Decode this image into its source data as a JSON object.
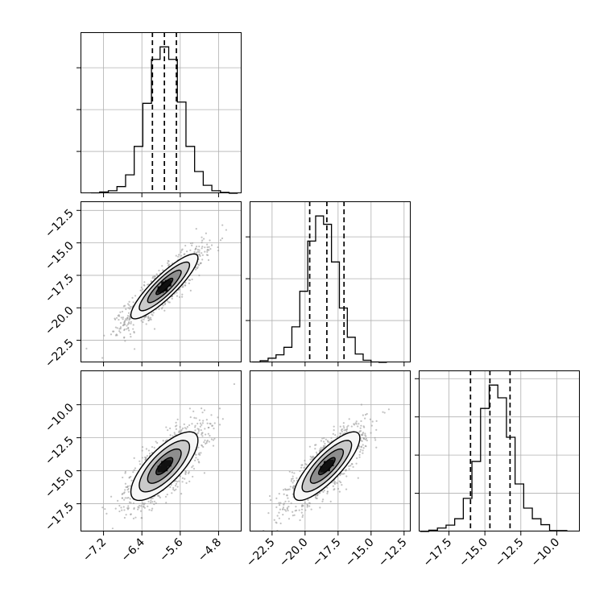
{
  "chart_data": {
    "type": "corner",
    "parameters": [
      {
        "id": "p1",
        "hist": {
          "edges": [
            -7.46,
            -7.28,
            -7.1,
            -6.92,
            -6.74,
            -6.56,
            -6.38,
            -6.2,
            -6.02,
            -5.84,
            -5.66,
            -5.48,
            -5.3,
            -5.12,
            -4.94,
            -4.76,
            -4.58,
            -4.4
          ],
          "counts": [
            1,
            3,
            6,
            16,
            44,
            112,
            215,
            320,
            350,
            320,
            218,
            112,
            52,
            19,
            6,
            2,
            0
          ]
        },
        "quantiles": [
          -6.18,
          -5.93,
          -5.68
        ],
        "ticks": [
          -7.2,
          -6.4,
          -5.6,
          -4.8
        ],
        "tick_labels": [
          "−7.2",
          "−6.4",
          "−5.6",
          "−4.8"
        ],
        "range": [
          -7.68,
          -4.32
        ]
      },
      {
        "id": "p2",
        "hist": {
          "edges": [
            -24.0,
            -23.4,
            -22.8,
            -22.2,
            -21.6,
            -21.0,
            -20.4,
            -19.8,
            -19.2,
            -18.6,
            -18.0,
            -17.4,
            -16.8,
            -16.2,
            -15.6,
            -15.0,
            -14.4,
            -13.8
          ],
          "counts": [
            1,
            4,
            10,
            18,
            36,
            85,
            170,
            290,
            350,
            330,
            240,
            130,
            60,
            20,
            5,
            1,
            0
          ]
        },
        "quantiles": [
          -19.65,
          -18.35,
          -17.05
        ],
        "ticks": [
          -22.5,
          -20.0,
          -17.5,
          -15.0,
          -12.5
        ],
        "tick_labels": [
          "−22.5",
          "−20.0",
          "−17.5",
          "−15.0",
          "−12.5"
        ],
        "range": [
          -24.2,
          -12.0
        ]
      },
      {
        "id": "p3",
        "hist": {
          "edges": [
            -19.5,
            -18.9,
            -18.3,
            -17.7,
            -17.1,
            -16.5,
            -15.9,
            -15.3,
            -14.7,
            -14.1,
            -13.5,
            -12.9,
            -12.3,
            -11.7,
            -11.1,
            -10.5,
            -9.9,
            -9.3
          ],
          "counts": [
            0,
            3,
            8,
            15,
            30,
            78,
            165,
            290,
            345,
            315,
            222,
            112,
            55,
            30,
            16,
            2,
            2
          ]
        },
        "quantiles": [
          -16.0,
          -14.65,
          -13.25
        ],
        "ticks": [
          -17.5,
          -15.0,
          -12.5,
          -10.0
        ],
        "tick_labels": [
          "−17.5",
          "−15.0",
          "−12.5",
          "−10.0"
        ],
        "range": [
          -19.6,
          -8.4
        ]
      }
    ],
    "pairs": [
      {
        "x": "p1",
        "y": "p2",
        "mean": [
          -5.93,
          -18.35
        ],
        "sd": [
          0.35,
          1.25
        ],
        "corr": 0.88
      },
      {
        "x": "p1",
        "y": "p3",
        "mean": [
          -5.93,
          -14.65
        ],
        "sd": [
          0.35,
          1.3
        ],
        "corr": 0.75
      },
      {
        "x": "p2",
        "y": "p3",
        "mean": [
          -18.35,
          -14.65
        ],
        "sd": [
          1.25,
          1.3
        ],
        "corr": 0.82
      }
    ],
    "row_axes": {
      "p2": {
        "ticks": [
          -12.5,
          -15.0,
          -17.5,
          -20.0,
          -22.5
        ],
        "tick_labels": [
          "−12.5",
          "−15.0",
          "−17.5",
          "−20.0",
          "−22.5"
        ],
        "range": [
          -24.2,
          -11.8
        ]
      },
      "p3": {
        "ticks": [
          -10.0,
          -12.5,
          -15.0,
          -17.5
        ],
        "tick_labels": [
          "−10.0",
          "−12.5",
          "−15.0",
          "−17.5"
        ],
        "range": [
          -19.6,
          -7.4
        ]
      }
    },
    "contour_levels": [
      0.5,
      1.0,
      1.5,
      2.0
    ],
    "grid": true,
    "colors": {
      "line": "#000000",
      "grid": "#b0b0b0",
      "scatter": "#9a9a9a",
      "axes": "#000000",
      "background": "#ffffff"
    }
  }
}
